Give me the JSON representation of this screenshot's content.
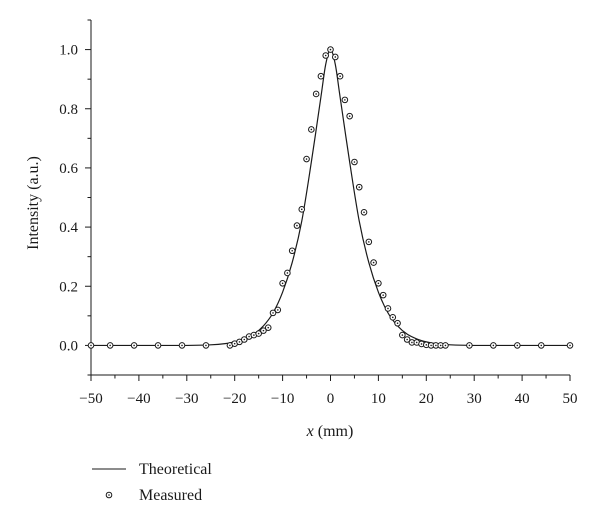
{
  "chart_data": {
    "type": "scatter",
    "xlabel_var": "x",
    "xlabel_unit": "(mm)",
    "ylabel": "Intensity (a.u.)",
    "xlim": [
      -50,
      50
    ],
    "ylim": [
      -0.1,
      1.1
    ],
    "x_ticks": [
      -50,
      -40,
      -30,
      -20,
      -10,
      0,
      10,
      20,
      30,
      40,
      50
    ],
    "x_tick_labels": [
      "−50",
      "−40",
      "−30",
      "−20",
      "−10",
      "0",
      "10",
      "20",
      "30",
      "40",
      "50"
    ],
    "y_ticks": [
      0.0,
      0.2,
      0.4,
      0.6,
      0.8,
      1.0
    ],
    "y_tick_labels": [
      "0.0",
      "0.2",
      "0.4",
      "0.6",
      "0.8",
      "1.0"
    ],
    "grid": false,
    "legend_position": "bottom-left",
    "series": [
      {
        "name": "Theoretical",
        "kind": "line",
        "x": [
          -50,
          -40,
          -30,
          -25,
          -22,
          -20,
          -18,
          -16,
          -14,
          -12,
          -10,
          -8,
          -6,
          -4,
          -2,
          -1,
          0,
          1,
          2,
          4,
          6,
          8,
          10,
          12,
          14,
          16,
          18,
          20,
          22,
          25,
          30,
          40,
          50
        ],
        "y": [
          0.0,
          0.0,
          0.0,
          0.002,
          0.006,
          0.012,
          0.022,
          0.038,
          0.066,
          0.11,
          0.18,
          0.28,
          0.42,
          0.62,
          0.84,
          0.95,
          1.0,
          0.95,
          0.84,
          0.62,
          0.42,
          0.28,
          0.18,
          0.11,
          0.066,
          0.038,
          0.022,
          0.012,
          0.006,
          0.002,
          0.0,
          0.0,
          0.0
        ]
      },
      {
        "name": "Measured",
        "kind": "scatter",
        "x": [
          -50,
          -46,
          -41,
          -36,
          -31,
          -26,
          -21,
          -20,
          -19,
          -18,
          -17,
          -16,
          -15,
          -14,
          -13,
          -12,
          -11,
          -10,
          -9,
          -8,
          -7,
          -6,
          -5,
          -4,
          -3,
          -2,
          -1,
          0,
          1,
          2,
          3,
          4,
          5,
          6,
          7,
          8,
          9,
          10,
          11,
          12,
          13,
          14,
          15,
          16,
          17,
          18,
          19,
          20,
          21,
          22,
          23,
          24,
          29,
          34,
          39,
          44,
          50
        ],
        "y": [
          0.0,
          0.0,
          0.0,
          0.0,
          0.0,
          0.0,
          0.0,
          0.006,
          0.012,
          0.02,
          0.03,
          0.035,
          0.04,
          0.05,
          0.06,
          0.11,
          0.12,
          0.21,
          0.245,
          0.32,
          0.405,
          0.46,
          0.63,
          0.73,
          0.85,
          0.91,
          0.98,
          1.0,
          0.975,
          0.91,
          0.83,
          0.775,
          0.62,
          0.535,
          0.45,
          0.35,
          0.28,
          0.21,
          0.17,
          0.125,
          0.095,
          0.075,
          0.035,
          0.02,
          0.01,
          0.01,
          0.005,
          0.002,
          0.0,
          0.0,
          0.0,
          0.0,
          0.0,
          0.0,
          0.0,
          0.0,
          0.0
        ]
      }
    ],
    "legend": [
      {
        "label": "Theoretical",
        "marker": "line"
      },
      {
        "label": "Measured",
        "marker": "open-circle-dot"
      }
    ],
    "colors": {
      "ink": "#1a1a1a"
    }
  }
}
